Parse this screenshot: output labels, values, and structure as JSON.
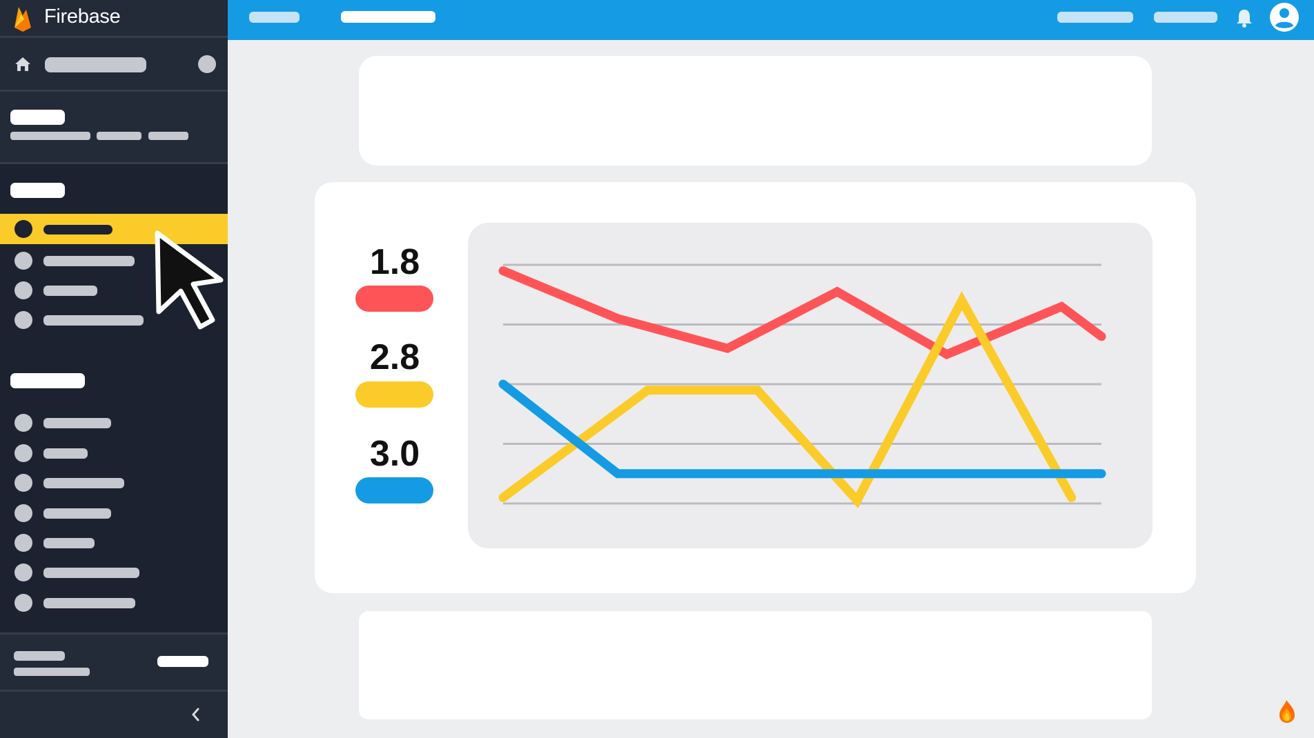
{
  "app": {
    "name": "Firebase",
    "brand_colors": {
      "orange": "#f57c00",
      "amber": "#ffa000",
      "yellow": "#fbcb2a"
    }
  },
  "header": {
    "background": "#159be3",
    "icons": [
      "bell-icon",
      "account-circle-icon"
    ]
  },
  "sidebar": {
    "background": "#1c2230",
    "active_highlight": "#fbcb2a",
    "icons": [
      "home-icon",
      "chevron-left-icon"
    ],
    "active_item_index": 0
  },
  "metrics": [
    {
      "value": "1.8",
      "color": "#ff5457"
    },
    {
      "value": "2.8",
      "color": "#fbcb2a"
    },
    {
      "value": "3.0",
      "color": "#159be3"
    }
  ],
  "chart_data": {
    "type": "line",
    "grid": true,
    "x": [
      0,
      1,
      2,
      3,
      4,
      5,
      6,
      7,
      8,
      9,
      10,
      11,
      12
    ],
    "ylim": [
      0,
      4
    ],
    "series": [
      {
        "color": "#ff5457",
        "points": [
          [
            0,
            3.9
          ],
          [
            1,
            3.1
          ],
          [
            2,
            2.6
          ],
          [
            3,
            3.55
          ],
          [
            4,
            2.5
          ],
          [
            5,
            3.3
          ],
          [
            6,
            2.8
          ]
        ]
      },
      {
        "color": "#fbcb2a",
        "points": [
          [
            0,
            0.1
          ],
          [
            1,
            1.9
          ],
          [
            2,
            1.9
          ],
          [
            3,
            0.05
          ],
          [
            4,
            3.4
          ],
          [
            5,
            0.1
          ]
        ]
      },
      {
        "color": "#159be3",
        "points": [
          [
            0,
            2.0
          ],
          [
            1,
            0.5
          ],
          [
            2,
            0.5
          ],
          [
            3,
            0.5
          ],
          [
            4,
            0.5
          ],
          [
            5,
            0.5
          ]
        ]
      }
    ]
  }
}
